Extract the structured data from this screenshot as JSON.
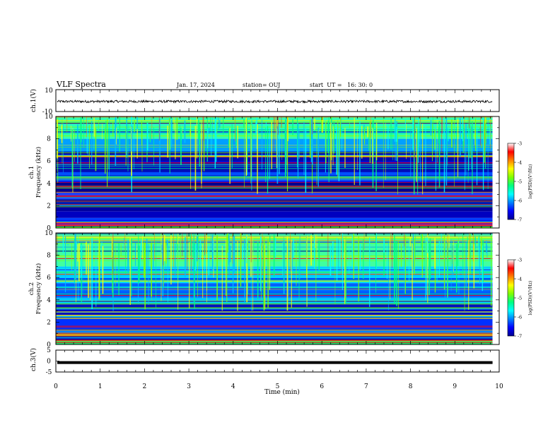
{
  "header": {
    "title": "VLF Spectra",
    "date": "Jan. 17, 2024",
    "station": "station= OUJ",
    "start": "start  UT =   16: 30: 0"
  },
  "chart_data": [
    {
      "type": "line",
      "ylabel": "ch.1(V)",
      "ylim": [
        -10,
        10
      ],
      "yticks": [
        "10",
        "-10"
      ],
      "xlim": [
        0,
        10
      ],
      "series": [
        {
          "color": "#000000",
          "level": 0.0,
          "values_note": ""
        }
      ]
    },
    {
      "type": "heatmap",
      "ylabel_line1": "ch.1",
      "ylabel_line2": "Frequency  (kHz)",
      "ylim": [
        0,
        10
      ],
      "yticks": [
        "0",
        "2",
        "4",
        "6",
        "8",
        "10"
      ],
      "xlim": [
        0,
        10
      ],
      "colorbar": {
        "label": "log(PSD)(V²/Hz)",
        "range": [
          -7,
          -3
        ],
        "ticks": [
          "-3",
          "-4",
          "-5",
          "-6",
          "-7"
        ],
        "colors": [
          "#000090",
          "#0000ff",
          "#0080ff",
          "#00ffff",
          "#00ff80",
          "#80ff00",
          "#ffff00",
          "#ff8000",
          "#ff0000",
          "#ffffff"
        ]
      }
    },
    {
      "type": "heatmap",
      "ylabel_line1": "ch.2",
      "ylabel_line2": "Frequency  (kHz)",
      "ylim": [
        0,
        10
      ],
      "yticks": [
        "0",
        "2",
        "4",
        "6",
        "8",
        "10"
      ],
      "xlim": [
        0,
        10
      ],
      "colorbar": {
        "label": "log(PSD)(V²/Hz)",
        "range": [
          -7,
          -3
        ],
        "ticks": [
          "-3",
          "-4",
          "-5",
          "-6",
          "-7"
        ]
      }
    },
    {
      "type": "line",
      "ylabel": "ch.3(V)",
      "ylim": [
        -5,
        5
      ],
      "yticks": [
        "5",
        "0",
        "-5"
      ],
      "xlim": [
        0,
        10
      ],
      "xlabel": "Time  (min)",
      "xticks": [
        "0",
        "1",
        "2",
        "3",
        "4",
        "5",
        "6",
        "7",
        "8",
        "9",
        "10"
      ],
      "series": [
        {
          "color": "#000000",
          "level": -0.7
        }
      ]
    }
  ]
}
